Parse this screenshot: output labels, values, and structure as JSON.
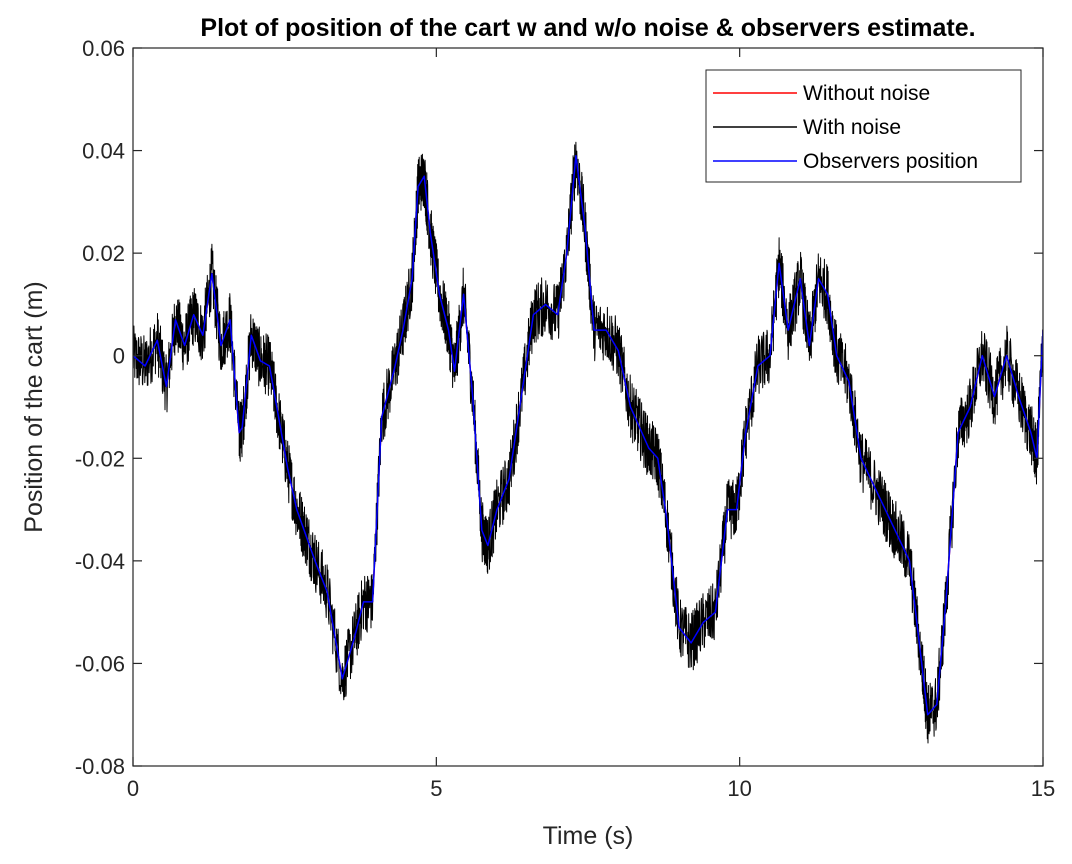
{
  "chart_data": {
    "type": "line",
    "title": "Plot of position of the cart w and w/o noise & observers estimate.",
    "xlabel": "Time (s)",
    "ylabel": "Position of the cart (m)",
    "xlim": [
      0,
      15
    ],
    "ylim": [
      -0.08,
      0.06
    ],
    "xticks": [
      0,
      5,
      10,
      15
    ],
    "xtick_labels": [
      "0",
      "5",
      "10",
      "15"
    ],
    "yticks": [
      -0.08,
      -0.06,
      -0.04,
      -0.02,
      0,
      0.02,
      0.04,
      0.06
    ],
    "ytick_labels": [
      "-0.08",
      "-0.06",
      "-0.04",
      "-0.02",
      "0",
      "0.02",
      "0.04",
      "0.06"
    ],
    "grid": false,
    "legend_position": "top-right",
    "x": [
      0,
      0.2,
      0.4,
      0.55,
      0.7,
      0.85,
      1.0,
      1.15,
      1.3,
      1.45,
      1.6,
      1.75,
      1.8,
      1.95,
      2.1,
      2.25,
      2.4,
      2.55,
      2.7,
      2.85,
      3.0,
      3.2,
      3.45,
      3.65,
      3.8,
      3.95,
      4.1,
      4.3,
      4.45,
      4.6,
      4.7,
      4.8,
      4.9,
      5.05,
      5.2,
      5.3,
      5.45,
      5.6,
      5.75,
      5.85,
      6.0,
      6.2,
      6.4,
      6.6,
      6.8,
      7.0,
      7.15,
      7.3,
      7.45,
      7.6,
      7.8,
      8.0,
      8.2,
      8.35,
      8.5,
      8.65,
      8.8,
      9.0,
      9.2,
      9.4,
      9.6,
      9.8,
      9.95,
      10.1,
      10.3,
      10.5,
      10.65,
      10.8,
      11.0,
      11.15,
      11.3,
      11.45,
      11.6,
      11.8,
      12.0,
      12.2,
      12.4,
      12.6,
      12.8,
      13.0,
      13.1,
      13.25,
      13.4,
      13.6,
      13.8,
      14.0,
      14.2,
      14.4,
      14.6,
      14.8,
      14.9,
      15.0
    ],
    "series": [
      {
        "name": "Without noise",
        "color": "#ff0000",
        "values": [
          0.0,
          -0.002,
          0.003,
          -0.006,
          0.007,
          0.002,
          0.008,
          0.004,
          0.016,
          0.002,
          0.007,
          -0.015,
          -0.014,
          0.004,
          -0.001,
          -0.002,
          -0.012,
          -0.022,
          -0.03,
          -0.035,
          -0.04,
          -0.046,
          -0.063,
          -0.055,
          -0.048,
          -0.048,
          -0.012,
          -0.003,
          0.005,
          0.015,
          0.033,
          0.035,
          0.024,
          0.012,
          0.005,
          -0.003,
          0.012,
          -0.008,
          -0.034,
          -0.037,
          -0.03,
          -0.024,
          -0.008,
          0.008,
          0.01,
          0.008,
          0.02,
          0.039,
          0.025,
          0.005,
          0.005,
          0.001,
          -0.01,
          -0.014,
          -0.018,
          -0.02,
          -0.032,
          -0.053,
          -0.056,
          -0.052,
          -0.05,
          -0.03,
          -0.03,
          -0.015,
          -0.002,
          0.0,
          0.018,
          0.005,
          0.015,
          0.002,
          0.015,
          0.012,
          0.0,
          -0.005,
          -0.02,
          -0.025,
          -0.03,
          -0.035,
          -0.04,
          -0.06,
          -0.07,
          -0.068,
          -0.048,
          -0.015,
          -0.01,
          0.0,
          -0.008,
          0.0,
          -0.008,
          -0.015,
          -0.02,
          0.005
        ]
      },
      {
        "name": "With noise",
        "color": "#000000",
        "values": [
          0.0,
          -0.002,
          0.003,
          -0.006,
          0.007,
          0.002,
          0.008,
          0.004,
          0.016,
          0.002,
          0.007,
          -0.015,
          -0.014,
          0.004,
          -0.001,
          -0.002,
          -0.012,
          -0.022,
          -0.03,
          -0.035,
          -0.04,
          -0.046,
          -0.063,
          -0.055,
          -0.048,
          -0.048,
          -0.012,
          -0.003,
          0.005,
          0.015,
          0.033,
          0.035,
          0.024,
          0.012,
          0.005,
          -0.003,
          0.012,
          -0.008,
          -0.034,
          -0.037,
          -0.03,
          -0.024,
          -0.008,
          0.008,
          0.01,
          0.008,
          0.02,
          0.039,
          0.025,
          0.005,
          0.005,
          0.001,
          -0.01,
          -0.014,
          -0.018,
          -0.02,
          -0.032,
          -0.053,
          -0.056,
          -0.052,
          -0.05,
          -0.03,
          -0.03,
          -0.015,
          -0.002,
          0.0,
          0.018,
          0.005,
          0.015,
          0.002,
          0.015,
          0.012,
          0.0,
          -0.005,
          -0.02,
          -0.025,
          -0.03,
          -0.035,
          -0.04,
          -0.06,
          -0.07,
          -0.068,
          -0.048,
          -0.015,
          -0.01,
          0.0,
          -0.008,
          0.0,
          -0.008,
          -0.015,
          -0.02,
          0.005
        ]
      },
      {
        "name": "Observers position",
        "color": "#0000ff",
        "values": [
          0.0,
          -0.002,
          0.003,
          -0.006,
          0.007,
          0.002,
          0.008,
          0.004,
          0.016,
          0.002,
          0.007,
          -0.015,
          -0.014,
          0.004,
          -0.001,
          -0.002,
          -0.012,
          -0.022,
          -0.03,
          -0.035,
          -0.04,
          -0.046,
          -0.063,
          -0.055,
          -0.048,
          -0.048,
          -0.012,
          -0.003,
          0.005,
          0.015,
          0.033,
          0.035,
          0.024,
          0.012,
          0.005,
          -0.003,
          0.012,
          -0.008,
          -0.034,
          -0.037,
          -0.03,
          -0.024,
          -0.008,
          0.008,
          0.01,
          0.008,
          0.02,
          0.039,
          0.025,
          0.005,
          0.005,
          0.001,
          -0.01,
          -0.014,
          -0.018,
          -0.02,
          -0.032,
          -0.053,
          -0.056,
          -0.052,
          -0.05,
          -0.03,
          -0.03,
          -0.015,
          -0.002,
          0.0,
          0.018,
          0.005,
          0.015,
          0.002,
          0.015,
          0.012,
          0.0,
          -0.005,
          -0.02,
          -0.025,
          -0.03,
          -0.035,
          -0.04,
          -0.06,
          -0.07,
          -0.068,
          -0.048,
          -0.015,
          -0.01,
          0.0,
          -0.008,
          0.0,
          -0.008,
          -0.015,
          -0.02,
          0.005
        ]
      }
    ]
  }
}
